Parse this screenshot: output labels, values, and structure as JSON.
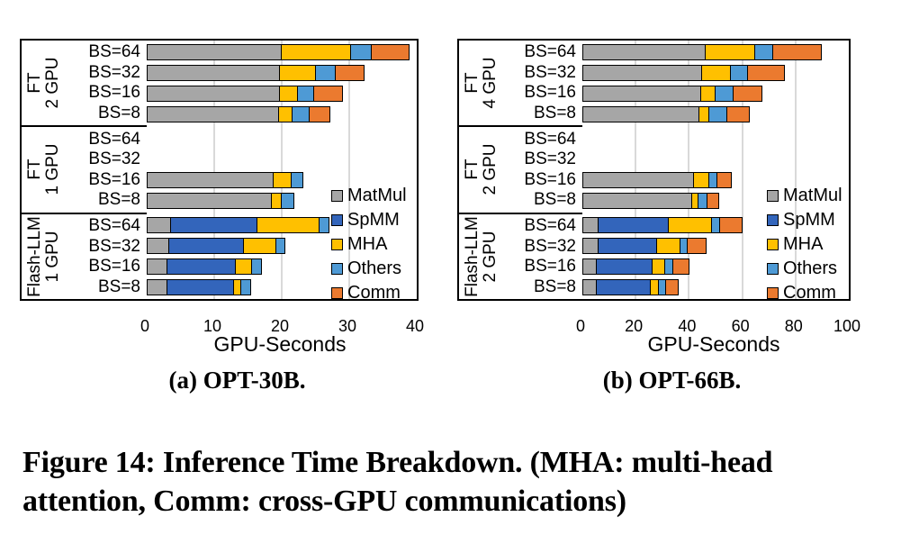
{
  "figure": {
    "caption_line1": "Figure 14: Inference Time Breakdown. (MHA: multi-head",
    "caption_line2": "attention, Comm: cross-GPU communications)"
  },
  "colors": {
    "MatMul": "#A6A6A6",
    "SpMM": "#3365BB",
    "MHA": "#FFC000",
    "Others": "#4E9AD5",
    "Comm": "#EB7A2F",
    "gridline": "#D9D9D9"
  },
  "legend": {
    "items": [
      "MatMul",
      "SpMM",
      "MHA",
      "Others",
      "Comm"
    ]
  },
  "chart_data": [
    {
      "type": "bar",
      "variant": "horizontal_stacked",
      "title": "(a) OPT-30B.",
      "xlabel": "GPU-Seconds",
      "xlim": [
        0,
        40
      ],
      "xticks": [
        0,
        10,
        20,
        30,
        40
      ],
      "grid": true,
      "legend_position": "inside-right",
      "series_order": [
        "MatMul",
        "SpMM",
        "MHA",
        "Others",
        "Comm"
      ],
      "groups": [
        {
          "label": [
            "FT",
            "2 GPU"
          ],
          "rows": [
            {
              "category": "BS=64",
              "MatMul": 20.0,
              "SpMM": 0,
              "MHA": 10.5,
              "Others": 3.3,
              "Comm": 5.7
            },
            {
              "category": "BS=32",
              "MatMul": 19.8,
              "SpMM": 0,
              "MHA": 5.5,
              "Others": 3.2,
              "Comm": 4.3
            },
            {
              "category": "BS=16",
              "MatMul": 19.8,
              "SpMM": 0,
              "MHA": 2.9,
              "Others": 2.5,
              "Comm": 4.5
            },
            {
              "category": "BS=8",
              "MatMul": 19.7,
              "SpMM": 0,
              "MHA": 2.1,
              "Others": 2.8,
              "Comm": 3.2
            }
          ]
        },
        {
          "label": [
            "FT",
            "1 GPU"
          ],
          "rows": [
            {
              "category": "BS=64",
              "MatMul": 0,
              "SpMM": 0,
              "MHA": 0,
              "Others": 0,
              "Comm": 0
            },
            {
              "category": "BS=32",
              "MatMul": 0,
              "SpMM": 0,
              "MHA": 0,
              "Others": 0,
              "Comm": 0
            },
            {
              "category": "BS=16",
              "MatMul": 18.8,
              "SpMM": 0,
              "MHA": 2.9,
              "Others": 1.9,
              "Comm": 0
            },
            {
              "category": "BS=8",
              "MatMul": 18.6,
              "SpMM": 0,
              "MHA": 1.7,
              "Others": 1.9,
              "Comm": 0
            }
          ]
        },
        {
          "label": [
            "Flash-LLM",
            "1 GPU"
          ],
          "rows": [
            {
              "category": "BS=64",
              "MatMul": 3.6,
              "SpMM": 13.0,
              "MHA": 9.4,
              "Others": 1.7,
              "Comm": 0
            },
            {
              "category": "BS=32",
              "MatMul": 3.4,
              "SpMM": 11.2,
              "MHA": 5.0,
              "Others": 1.5,
              "Comm": 0
            },
            {
              "category": "BS=16",
              "MatMul": 3.1,
              "SpMM": 10.3,
              "MHA": 2.6,
              "Others": 1.6,
              "Comm": 0
            },
            {
              "category": "BS=8",
              "MatMul": 3.1,
              "SpMM": 10.1,
              "MHA": 1.2,
              "Others": 1.6,
              "Comm": 0
            }
          ]
        }
      ]
    },
    {
      "type": "bar",
      "variant": "horizontal_stacked",
      "title": "(b) OPT-66B.",
      "xlabel": "GPU-Seconds",
      "xlim": [
        0,
        100
      ],
      "xticks": [
        0,
        20,
        40,
        60,
        80,
        100
      ],
      "grid": true,
      "legend_position": "inside-right",
      "series_order": [
        "MatMul",
        "SpMM",
        "MHA",
        "Others",
        "Comm"
      ],
      "groups": [
        {
          "label": [
            "FT",
            "4 GPU"
          ],
          "rows": [
            {
              "category": "BS=64",
              "MatMul": 46.5,
              "SpMM": 0,
              "MHA": 19.0,
              "Others": 7.4,
              "Comm": 18.5
            },
            {
              "category": "BS=32",
              "MatMul": 45.0,
              "SpMM": 0,
              "MHA": 11.5,
              "Others": 7.0,
              "Comm": 14.0
            },
            {
              "category": "BS=16",
              "MatMul": 44.7,
              "SpMM": 0,
              "MHA": 6.0,
              "Others": 7.1,
              "Comm": 11.2
            },
            {
              "category": "BS=8",
              "MatMul": 44.0,
              "SpMM": 0,
              "MHA": 4.3,
              "Others": 7.3,
              "Comm": 8.8
            }
          ]
        },
        {
          "label": [
            "FT",
            "2 GPU"
          ],
          "rows": [
            {
              "category": "BS=64",
              "MatMul": 0,
              "SpMM": 0,
              "MHA": 0,
              "Others": 0,
              "Comm": 0
            },
            {
              "category": "BS=32",
              "MatMul": 0,
              "SpMM": 0,
              "MHA": 0,
              "Others": 0,
              "Comm": 0
            },
            {
              "category": "BS=16",
              "MatMul": 42.2,
              "SpMM": 0,
              "MHA": 6.0,
              "Others": 3.5,
              "Comm": 6.0
            },
            {
              "category": "BS=8",
              "MatMul": 41.5,
              "SpMM": 0,
              "MHA": 2.9,
              "Others": 3.6,
              "Comm": 5.0
            }
          ]
        },
        {
          "label": [
            "Flash-LLM",
            "2 GPU"
          ],
          "rows": [
            {
              "category": "BS=64",
              "MatMul": 6.1,
              "SpMM": 27.0,
              "MHA": 16.8,
              "Others": 3.6,
              "Comm": 8.8
            },
            {
              "category": "BS=32",
              "MatMul": 6.1,
              "SpMM": 22.7,
              "MHA": 9.3,
              "Others": 3.2,
              "Comm": 7.2
            },
            {
              "category": "BS=16",
              "MatMul": 5.7,
              "SpMM": 21.3,
              "MHA": 5.3,
              "Others": 3.6,
              "Comm": 6.5
            },
            {
              "category": "BS=8",
              "MatMul": 5.7,
              "SpMM": 20.8,
              "MHA": 3.4,
              "Others": 3.3,
              "Comm": 4.9
            }
          ]
        }
      ]
    }
  ]
}
